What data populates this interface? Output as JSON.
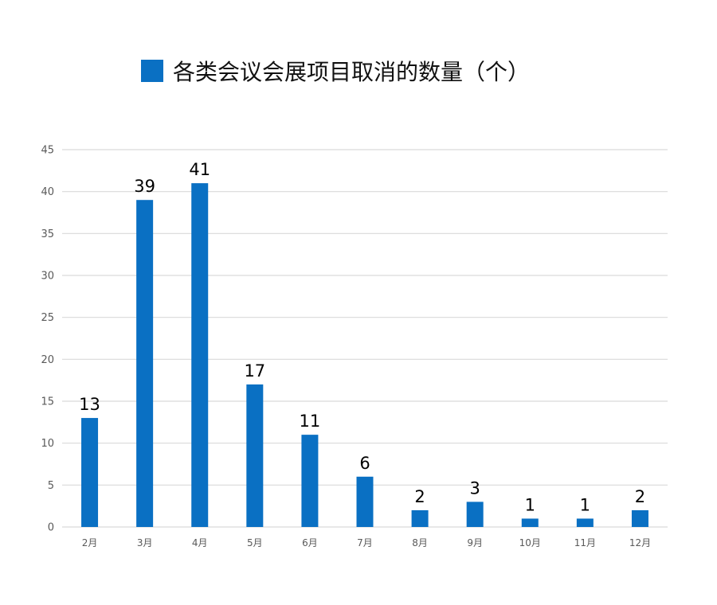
{
  "chart_data": {
    "type": "bar",
    "title": "",
    "xlabel": "",
    "ylabel": "",
    "categories": [
      "2月",
      "3月",
      "4月",
      "5月",
      "6月",
      "7月",
      "8月",
      "9月",
      "10月",
      "11月",
      "12月"
    ],
    "series": [
      {
        "name": "各类会议会展项目取消的数量（个）",
        "values": [
          13,
          39,
          41,
          17,
          11,
          6,
          2,
          3,
          1,
          1,
          2
        ]
      }
    ],
    "ylim": [
      0,
      45
    ],
    "yticks": [
      0,
      5,
      10,
      15,
      20,
      25,
      30,
      35,
      40,
      45
    ],
    "grid": true,
    "legend_position": "top-center",
    "data_labels": true,
    "colors": {
      "bar": "#0a70c3",
      "grid": "#d9d9d9",
      "tick_text": "#595959",
      "data_label": "#000000"
    }
  }
}
